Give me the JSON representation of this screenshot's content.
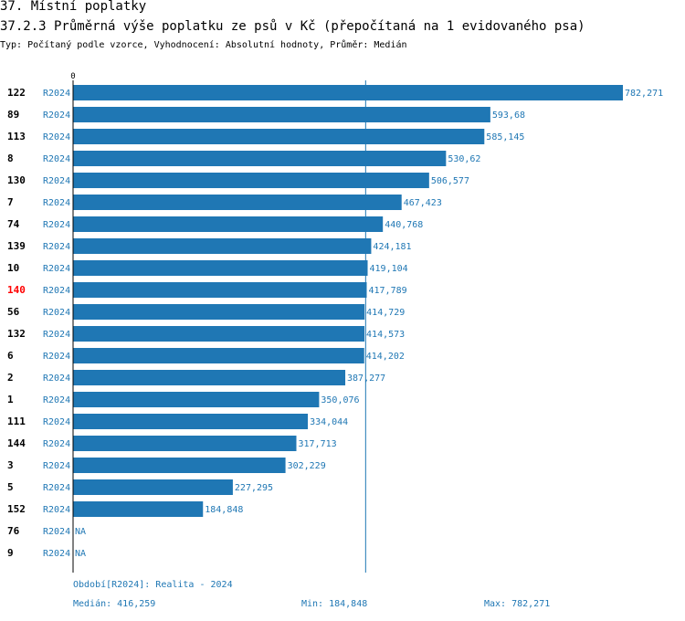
{
  "header": {
    "section": "37. Místní poplatky",
    "title": "37.2.3 Průměrná výše poplatku ze psů v Kč (přepočítaná na 1 evidovaného psa)",
    "subtitle": "Typ: Počítaný podle vzorce, Vyhodnocení: Absolutní hodnoty, Průměr: Medián"
  },
  "colors": {
    "bar": "#1f77b4",
    "highlight": "#ff0000",
    "text": "#000000",
    "series_text": "#1f77b4"
  },
  "chart_data": {
    "type": "bar",
    "orientation": "horizontal",
    "xlim": [
      0,
      782.271
    ],
    "x_tick_label": "0",
    "median": 416.259,
    "highlight_category": "140",
    "rows": [
      {
        "id": "122",
        "series": "R2024",
        "value": 782.271,
        "label": "782,271"
      },
      {
        "id": "89",
        "series": "R2024",
        "value": 593.68,
        "label": "593,68"
      },
      {
        "id": "113",
        "series": "R2024",
        "value": 585.145,
        "label": "585,145"
      },
      {
        "id": "8",
        "series": "R2024",
        "value": 530.62,
        "label": "530,62"
      },
      {
        "id": "130",
        "series": "R2024",
        "value": 506.577,
        "label": "506,577"
      },
      {
        "id": "7",
        "series": "R2024",
        "value": 467.423,
        "label": "467,423"
      },
      {
        "id": "74",
        "series": "R2024",
        "value": 440.768,
        "label": "440,768"
      },
      {
        "id": "139",
        "series": "R2024",
        "value": 424.181,
        "label": "424,181"
      },
      {
        "id": "10",
        "series": "R2024",
        "value": 419.104,
        "label": "419,104"
      },
      {
        "id": "140",
        "series": "R2024",
        "value": 417.789,
        "label": "417,789"
      },
      {
        "id": "56",
        "series": "R2024",
        "value": 414.729,
        "label": "414,729"
      },
      {
        "id": "132",
        "series": "R2024",
        "value": 414.573,
        "label": "414,573"
      },
      {
        "id": "6",
        "series": "R2024",
        "value": 414.202,
        "label": "414,202"
      },
      {
        "id": "2",
        "series": "R2024",
        "value": 387.277,
        "label": "387,277"
      },
      {
        "id": "1",
        "series": "R2024",
        "value": 350.076,
        "label": "350,076"
      },
      {
        "id": "111",
        "series": "R2024",
        "value": 334.044,
        "label": "334,044"
      },
      {
        "id": "144",
        "series": "R2024",
        "value": 317.713,
        "label": "317,713"
      },
      {
        "id": "3",
        "series": "R2024",
        "value": 302.229,
        "label": "302,229"
      },
      {
        "id": "5",
        "series": "R2024",
        "value": 227.295,
        "label": "227,295"
      },
      {
        "id": "152",
        "series": "R2024",
        "value": 184.848,
        "label": "184,848"
      },
      {
        "id": "76",
        "series": "R2024",
        "value": null,
        "label": "NA"
      },
      {
        "id": "9",
        "series": "R2024",
        "value": null,
        "label": "NA"
      }
    ]
  },
  "footer": {
    "period": "Období[R2024]: Realita - 2024",
    "median": "Medián: 416,259",
    "min": "Min: 184,848",
    "max": "Max: 782,271"
  }
}
